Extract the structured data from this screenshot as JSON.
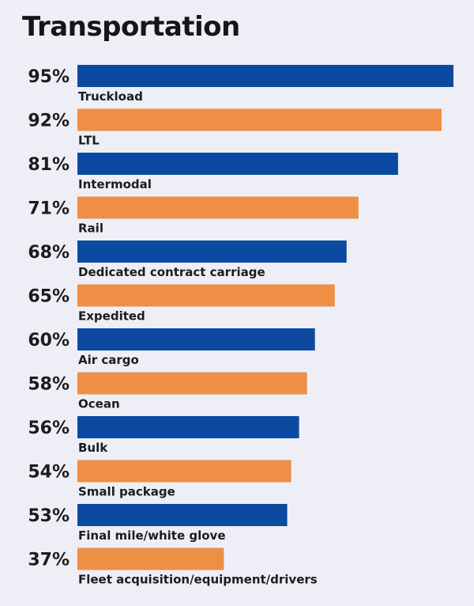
{
  "chart_data": {
    "type": "bar",
    "orientation": "horizontal",
    "title": "Transportation",
    "value_suffix": "%",
    "xlim": [
      0,
      95
    ],
    "categories": [
      "Truckload",
      "LTL",
      "Intermodal",
      "Rail",
      "Dedicated contract carriage",
      "Expedited",
      "Air cargo",
      "Ocean",
      "Bulk",
      "Small package",
      "Final mile/white glove",
      "Fleet acquisition/equipment/drivers"
    ],
    "values": [
      95,
      92,
      81,
      71,
      68,
      65,
      60,
      58,
      56,
      54,
      53,
      37
    ],
    "value_labels": [
      "95%",
      "92%",
      "81%",
      "71%",
      "68%",
      "65%",
      "60%",
      "58%",
      "56%",
      "54%",
      "53%",
      "37%"
    ],
    "colors": {
      "primary": "#0b4aa0",
      "secondary": "#ee8f45",
      "background": "#eeeef7"
    },
    "color_pattern": "alternating",
    "grid": false,
    "legend": "none"
  }
}
